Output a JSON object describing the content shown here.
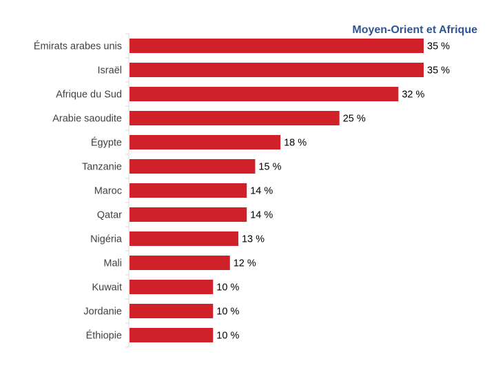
{
  "chart_data": {
    "type": "bar",
    "orientation": "horizontal",
    "title": "Moyen-Orient et Afrique",
    "categories": [
      "Émirats arabes unis",
      "Israël",
      "Afrique du Sud",
      "Arabie saoudite",
      "Égypte",
      "Tanzanie",
      "Maroc",
      "Qatar",
      "Nigéria",
      "Mali",
      "Kuwait",
      "Jordanie",
      "Éthiopie"
    ],
    "values": [
      35,
      35,
      32,
      25,
      18,
      15,
      14,
      14,
      13,
      12,
      10,
      10,
      10
    ],
    "data_labels": [
      "35 %",
      "35 %",
      "32 %",
      "25 %",
      "18 %",
      "15 %",
      "14 %",
      "14 %",
      "13 %",
      "12 %",
      "10 %",
      "10 %",
      "10 %"
    ],
    "xlim": [
      0,
      35
    ],
    "grid": false,
    "legend": "none",
    "colors": {
      "bar": "#D0202A",
      "title": "#2F5597",
      "axis": "#D9D9D9"
    }
  }
}
